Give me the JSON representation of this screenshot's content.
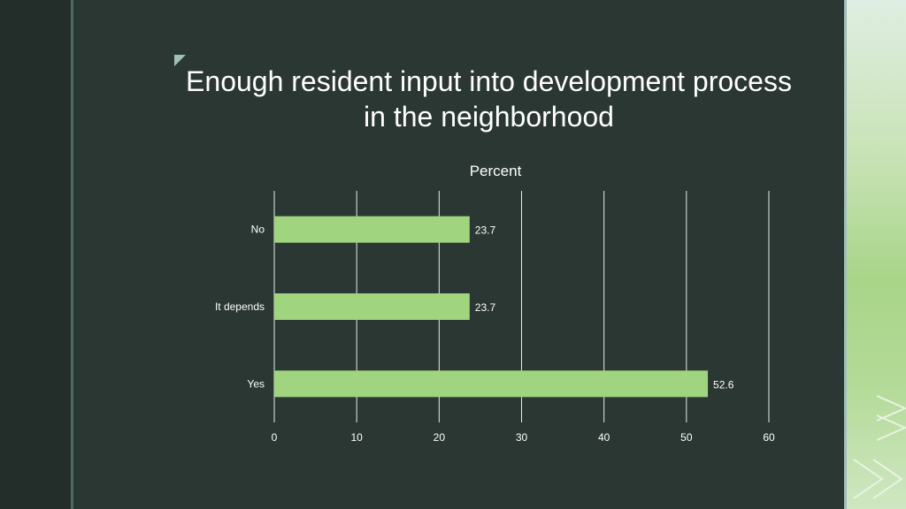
{
  "slide": {
    "title": "Enough resident input into development process in the neighborhood"
  },
  "colors": {
    "background": "#2b3732",
    "bar": "#a0d47e",
    "grid": "#e6ede9",
    "text": "#ffffff"
  },
  "chart_data": {
    "type": "bar",
    "orientation": "horizontal",
    "title": "Percent",
    "categories": [
      "No",
      "It depends",
      "Yes"
    ],
    "values": [
      23.7,
      23.7,
      52.6
    ],
    "data_labels": [
      "23.7",
      "23.7",
      "52.6"
    ],
    "xlim": [
      0,
      60
    ],
    "x_ticks": [
      0,
      10,
      20,
      30,
      40,
      50,
      60
    ],
    "x_tick_labels": [
      "0",
      "10",
      "20",
      "30",
      "40",
      "50",
      "60"
    ],
    "grid": true,
    "legend": "none"
  }
}
